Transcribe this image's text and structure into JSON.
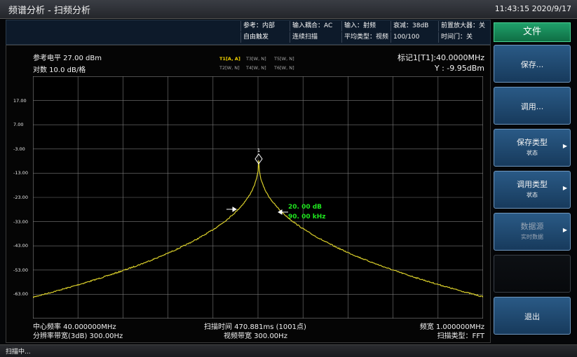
{
  "window": {
    "title": "频谱分析 - 扫频分析",
    "time": "11:43:15  2020/9/17"
  },
  "info": {
    "row1": [
      "参考：内部",
      "输入耦合：AC",
      "输入：射频",
      "衰减：38dB",
      "前置放大器：关"
    ],
    "row2": [
      "自由触发",
      "连续扫描",
      "平均类型：视频",
      "100/100",
      "时间门：关"
    ]
  },
  "graph": {
    "ref_level": "参考电平 27.00 dBm",
    "scale": "对数 10.0 dB/格",
    "traces_row1": [
      "T1[A, A]",
      "T3[W, N]",
      "T5[W, N]"
    ],
    "traces_row2": [
      "T2[W, N]",
      "T4[W, N]",
      "T6[W, N]"
    ],
    "marker_freq": "标记1[T1]:40.0000MHz",
    "marker_y": "Y : -9.95dBm",
    "marker_number": "1",
    "bw_level": "20. 00  dB",
    "bw_freq": "90. 00  kHz",
    "y_labels": [
      "17.00",
      "7.00",
      "-3.00",
      "-13.00",
      "-23.00",
      "-33.00",
      "-43.00",
      "-53.00",
      "-63.00"
    ],
    "trace_color": "#d8cd2a",
    "bw_color": "#1fe61f"
  },
  "footer": {
    "center_freq": "中心频率 40.000000MHz",
    "rbw": "分辨率带宽(3dB) 300.00Hz",
    "sweep_time": "扫描时间 470.881ms (1001点)",
    "vbw": "视频带宽 300.00Hz",
    "span": "频宽 1.000000MHz",
    "sweep_type": "扫描类型：FFT"
  },
  "menu": {
    "title": "文件",
    "keys": [
      {
        "label": "保存...",
        "sub": "",
        "arrow": false,
        "disabled": false
      },
      {
        "label": "调用...",
        "sub": "",
        "arrow": false,
        "disabled": false
      },
      {
        "label": "保存类型",
        "sub": "状态",
        "arrow": true,
        "disabled": false
      },
      {
        "label": "调用类型",
        "sub": "状态",
        "arrow": true,
        "disabled": false
      },
      {
        "label": "数据源",
        "sub": "实时数据",
        "arrow": true,
        "disabled": true
      },
      {
        "label": "",
        "sub": "",
        "arrow": false,
        "disabled": false
      },
      {
        "label": "退出",
        "sub": "",
        "arrow": false,
        "disabled": false
      }
    ]
  },
  "status": {
    "text": "扫描中..."
  }
}
